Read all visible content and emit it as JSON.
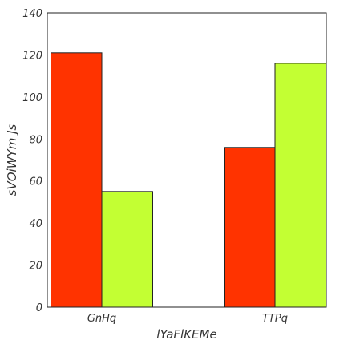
{
  "chart_data": {
    "type": "bar",
    "title": "",
    "xlabel": "lYaFlKEMe",
    "ylabel": "sVOiWYm Js",
    "categories": [
      "GnHq",
      "TTPq"
    ],
    "series": [
      {
        "values": [
          121,
          76
        ],
        "color": "#ff3300"
      },
      {
        "values": [
          55,
          116
        ],
        "color": "#c3ff33"
      }
    ],
    "ylim": [
      0,
      140
    ],
    "yticks": [
      0,
      20,
      40,
      60,
      80,
      100,
      120,
      140
    ],
    "grid": false,
    "legend": "none"
  }
}
